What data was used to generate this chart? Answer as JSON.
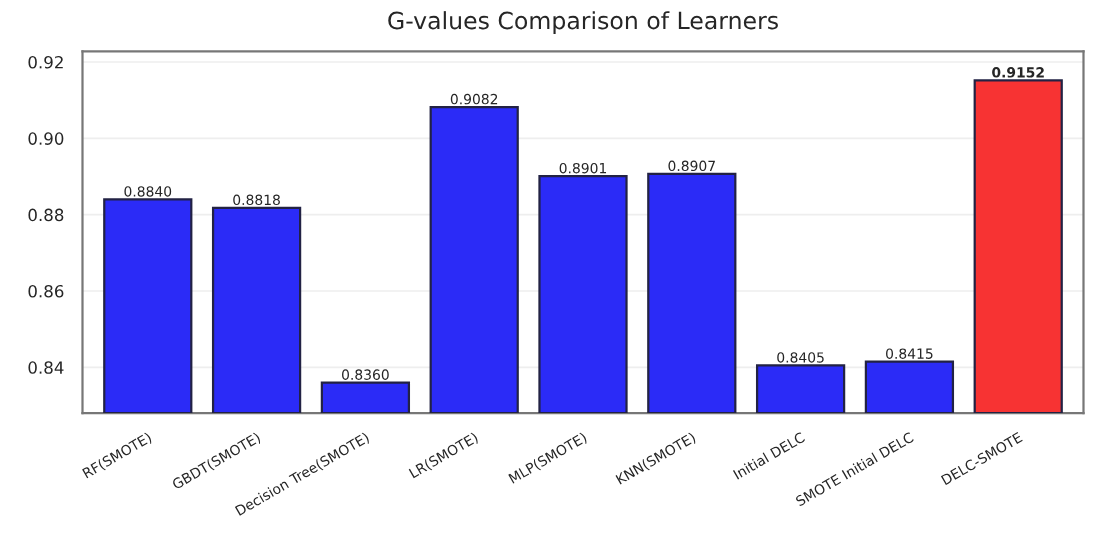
{
  "chart_data": {
    "type": "bar",
    "title": "G-values Comparison of Learners",
    "categories": [
      "RF(SMOTE)",
      "GBDT(SMOTE)",
      "Decision Tree(SMOTE)",
      "LR(SMOTE)",
      "MLP(SMOTE)",
      "KNN(SMOTE)",
      "Initial DELC",
      "SMOTE Initial DELC",
      "DELC-SMOTE"
    ],
    "values": [
      0.884,
      0.8818,
      0.836,
      0.9082,
      0.8901,
      0.8907,
      0.8405,
      0.8415,
      0.9152
    ],
    "value_labels": [
      "0.8840",
      "0.8818",
      "0.8360",
      "0.9082",
      "0.8901",
      "0.8907",
      "0.8405",
      "0.8415",
      "0.9152"
    ],
    "colors": [
      "#2b2bf7",
      "#2b2bf7",
      "#2b2bf7",
      "#2b2bf7",
      "#2b2bf7",
      "#2b2bf7",
      "#2b2bf7",
      "#2b2bf7",
      "#f73333"
    ],
    "ylim": [
      0.828,
      0.9228
    ],
    "yticks": [
      0.84,
      0.86,
      0.88,
      {
        "value": 0.9,
        "label": "0.90"
      },
      0.92
    ],
    "grid": "y"
  }
}
